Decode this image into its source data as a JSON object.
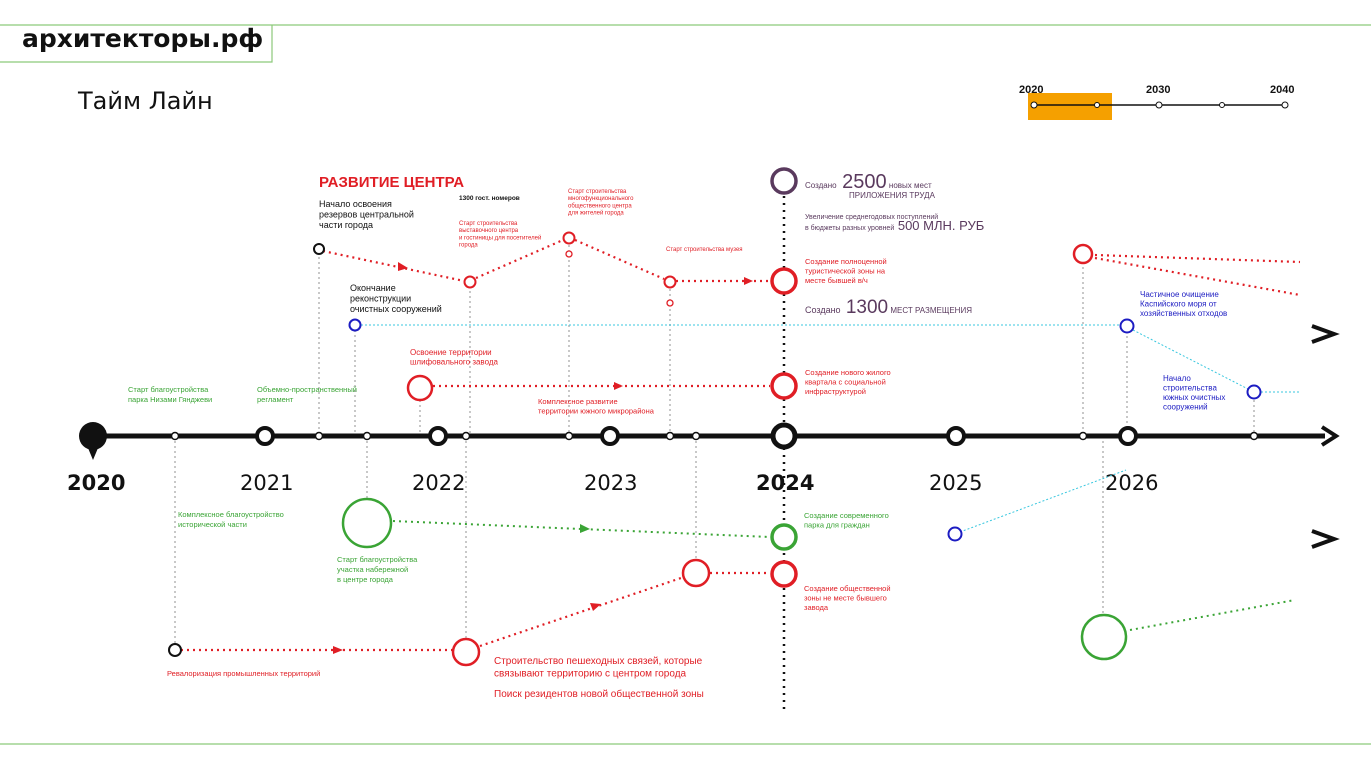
{
  "header": {
    "brand": "архитекторы.рф",
    "title": "Тайм Лайн"
  },
  "scale": {
    "labels": [
      "2020",
      "2030",
      "2040"
    ]
  },
  "years": [
    "2020",
    "2021",
    "2022",
    "2023",
    "2024",
    "2025",
    "2026"
  ],
  "section_title": "РАЗВИТИЕ ЦЕНТРА",
  "colors": {
    "red": "#e01e25",
    "green": "#3aa435",
    "blue": "#1c1cc2",
    "purple": "#5a3a5e",
    "cyan": "#38c7df",
    "black": "#111111",
    "orange": "#f5a000",
    "frame": "#8cc97a"
  },
  "events": {
    "start_center": "Начало освоения\nрезервов центральной\nчасти города",
    "hotel_rooms": "1300 гост. номеров",
    "expo_center": "Старт строительства\nвыставочного центра\nи гостиницы для посетителей\nгорода",
    "multifunc_center": "Старт строительства\nмногофункционального\nобщественного центра\nдля жителей города",
    "museum": "Старт строительства музея",
    "jobs_prefix": "Создано",
    "jobs_number": "2500",
    "jobs_suffix": "новых мест",
    "jobs_line2": "приложения труда",
    "revenue_line1": "Увеличение среднегодовых поступлений",
    "revenue_line2": "в бюджеты разных уровней",
    "revenue_value": "500 млн. руб",
    "tourist_zone": "Создание полноценной\nтуристической зоны на\nместе бывшей в/ч",
    "places_prefix": "Создано",
    "places_number": "1300",
    "places_suffix": "мест размещения",
    "treatment_end": "Окончание\nреконструкции\nочистных сооружений",
    "grinding_plant": "Освоение территории\nшлифовального завода",
    "south_district": "Комплексное развитие\nтерритории южного микрорайона",
    "new_quarter": "Создание нового жилого\nквартала с социальной\nинфраструктурой",
    "caspian": "Частичное очищение\nКаспийского моря от\nхозяйственных отходов",
    "south_treatment": "Начало\nстроительства\nюжных очистных\nсооружений",
    "park_nizami": "Старт благоустройства\nпарка Низами Гянджеви",
    "spatial_regl": "Объемно-пространственный\nрегламент",
    "historic_part": "Комплексное благоустройство\nисторической части",
    "embankment": "Старт благоустройства\nучастка набережной\nв центре города",
    "modern_park": "Создание современного\nпарка для граждан",
    "public_zone": "Создание общественной\nзоны не месте бывшего\nзавода",
    "revalorization": "Ревалоризация промышленных территорий",
    "ped_links": "Строительство пешеходных связей, которые\nсвязывают территорию с центром города",
    "residents": "Поиск резидентов новой общественной зоны"
  }
}
